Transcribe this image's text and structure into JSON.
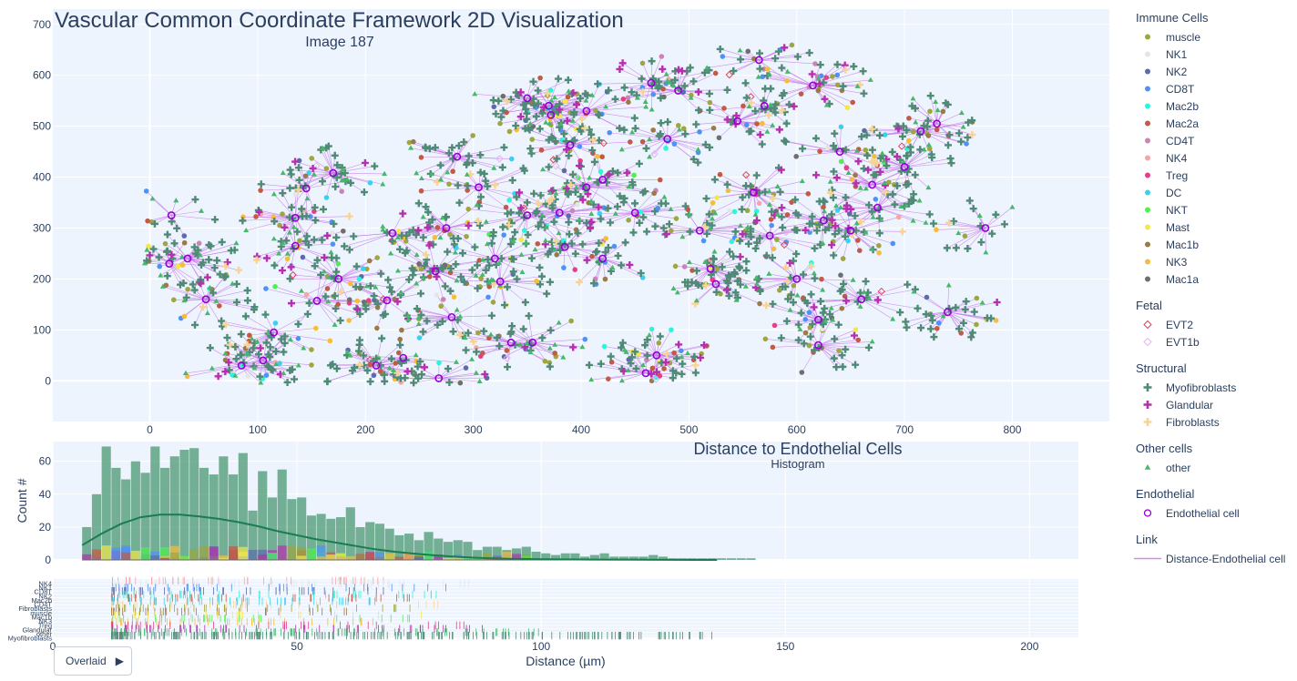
{
  "chart_data": [
    {
      "type": "scatter",
      "title": "Vascular Common Coordinate Framework 2D Visualization",
      "subtitle": "Image 187",
      "xlim": [
        -90,
        890
      ],
      "ylim": [
        -80,
        730
      ],
      "x_ticks": [
        0,
        100,
        200,
        300,
        400,
        500,
        600,
        700,
        800
      ],
      "y_ticks": [
        0,
        100,
        200,
        300,
        400,
        500,
        600,
        700
      ],
      "endothelial_cells": [
        [
          20,
          325
        ],
        [
          35,
          240
        ],
        [
          18,
          230
        ],
        [
          52,
          160
        ],
        [
          85,
          30
        ],
        [
          105,
          40
        ],
        [
          145,
          378
        ],
        [
          135,
          320
        ],
        [
          135,
          265
        ],
        [
          115,
          95
        ],
        [
          155,
          157
        ],
        [
          170,
          408
        ],
        [
          175,
          200
        ],
        [
          210,
          30
        ],
        [
          225,
          290
        ],
        [
          220,
          158
        ],
        [
          235,
          45
        ],
        [
          265,
          215
        ],
        [
          275,
          300
        ],
        [
          280,
          125
        ],
        [
          268,
          5
        ],
        [
          285,
          440
        ],
        [
          305,
          380
        ],
        [
          320,
          240
        ],
        [
          325,
          195
        ],
        [
          335,
          75
        ],
        [
          350,
          325
        ],
        [
          350,
          555
        ],
        [
          355,
          75
        ],
        [
          370,
          540
        ],
        [
          372,
          522
        ],
        [
          380,
          330
        ],
        [
          385,
          263
        ],
        [
          390,
          463
        ],
        [
          405,
          530
        ],
        [
          420,
          395
        ],
        [
          420,
          240
        ],
        [
          405,
          380
        ],
        [
          450,
          330
        ],
        [
          460,
          15
        ],
        [
          465,
          585
        ],
        [
          470,
          50
        ],
        [
          480,
          475
        ],
        [
          490,
          570
        ],
        [
          510,
          295
        ],
        [
          520,
          220
        ],
        [
          525,
          190
        ],
        [
          545,
          510
        ],
        [
          570,
          540
        ],
        [
          565,
          630
        ],
        [
          575,
          285
        ],
        [
          560,
          370
        ],
        [
          600,
          200
        ],
        [
          615,
          580
        ],
        [
          625,
          315
        ],
        [
          620,
          120
        ],
        [
          620,
          70
        ],
        [
          640,
          450
        ],
        [
          650,
          295
        ],
        [
          660,
          160
        ],
        [
          670,
          385
        ],
        [
          675,
          340
        ],
        [
          700,
          420
        ],
        [
          715,
          490
        ],
        [
          730,
          505
        ],
        [
          740,
          135
        ],
        [
          775,
          300
        ]
      ],
      "cell_type_series": [
        {
          "name": "muscle",
          "color": "#9da63f",
          "symbol": "circle",
          "count": 110
        },
        {
          "name": "NK1",
          "color": "#e5e5e5",
          "symbol": "circle",
          "count": 15
        },
        {
          "name": "NK2",
          "color": "#5b6bab",
          "symbol": "circle",
          "count": 30
        },
        {
          "name": "CD8T",
          "color": "#4f92f5",
          "symbol": "circle",
          "count": 55
        },
        {
          "name": "Mac2b",
          "color": "#2cf5dc",
          "symbol": "circle",
          "count": 25
        },
        {
          "name": "Mac2a",
          "color": "#c25a45",
          "symbol": "circle",
          "count": 90
        },
        {
          "name": "CD4T",
          "color": "#c786b5",
          "symbol": "circle",
          "count": 20
        },
        {
          "name": "NK4",
          "color": "#f5a7a7",
          "symbol": "circle",
          "count": 15
        },
        {
          "name": "Treg",
          "color": "#e63f8a",
          "symbol": "circle",
          "count": 15
        },
        {
          "name": "DC",
          "color": "#3cd0f0",
          "symbol": "circle",
          "count": 20
        },
        {
          "name": "NKT",
          "color": "#4ef04e",
          "symbol": "circle",
          "count": 10
        },
        {
          "name": "Mast",
          "color": "#f2e84a",
          "symbol": "circle",
          "count": 20
        },
        {
          "name": "Mac1b",
          "color": "#9a7a4a",
          "symbol": "circle",
          "count": 40
        },
        {
          "name": "NK3",
          "color": "#f5bd3a",
          "symbol": "circle",
          "count": 40
        },
        {
          "name": "Mac1a",
          "color": "#6e6e6e",
          "symbol": "circle",
          "count": 20
        },
        {
          "name": "EVT2",
          "color": "#e2435b",
          "symbol": "diamond-open",
          "count": 12
        },
        {
          "name": "EVT1b",
          "color": "#e3b6f2",
          "symbol": "diamond-open",
          "count": 12
        },
        {
          "name": "Myofibroblasts",
          "color": "#4e8a76",
          "symbol": "cross",
          "count": 900
        },
        {
          "name": "Glandular",
          "color": "#b62fae",
          "symbol": "cross",
          "count": 120
        },
        {
          "name": "Fibroblasts",
          "color": "#f7d39a",
          "symbol": "cross",
          "count": 60
        },
        {
          "name": "other",
          "color": "#45b86b",
          "symbol": "triangle-up",
          "count": 280
        }
      ]
    },
    {
      "type": "bar",
      "title": "Distance to Endothelial Cells",
      "subtitle": "Histogram",
      "ylabel": "Count #",
      "xlabel": "Distance (µm)",
      "xlim": [
        0,
        210
      ],
      "ylim": [
        0,
        72
      ],
      "x_ticks": [
        0,
        50,
        100,
        150,
        200
      ],
      "y_ticks": [
        0,
        20,
        40,
        60
      ],
      "bin_width": 2,
      "bins_start": 6,
      "counts": [
        20,
        40,
        69,
        56,
        49,
        60,
        53,
        69,
        56,
        63,
        67,
        68,
        56,
        52,
        63,
        52,
        65,
        30,
        54,
        38,
        55,
        37,
        38,
        27,
        28,
        25,
        26,
        32,
        20,
        23,
        22,
        19,
        15,
        16,
        12,
        17,
        13,
        11,
        12,
        11,
        6,
        8,
        8,
        6,
        7,
        8,
        5,
        4,
        3,
        4,
        4,
        2,
        3,
        4,
        2,
        2,
        2,
        2,
        3,
        2,
        1,
        1,
        1,
        1,
        1,
        1,
        1,
        1,
        1
      ],
      "kde_curve": [
        [
          6,
          9
        ],
        [
          10,
          16
        ],
        [
          14,
          22
        ],
        [
          18,
          26
        ],
        [
          22,
          27.5
        ],
        [
          26,
          27.5
        ],
        [
          30,
          26.5
        ],
        [
          34,
          25
        ],
        [
          38,
          23
        ],
        [
          42,
          20.5
        ],
        [
          46,
          17.5
        ],
        [
          50,
          15
        ],
        [
          54,
          12.5
        ],
        [
          58,
          10.5
        ],
        [
          62,
          8.5
        ],
        [
          66,
          6.5
        ],
        [
          70,
          5
        ],
        [
          74,
          3.8
        ],
        [
          78,
          2.8
        ],
        [
          82,
          2
        ],
        [
          86,
          1.4
        ],
        [
          90,
          1
        ],
        [
          94,
          0.7
        ],
        [
          100,
          0.4
        ],
        [
          110,
          0.2
        ],
        [
          120,
          0.1
        ],
        [
          136,
          0
        ]
      ],
      "kde_color": "#1a7d4f",
      "bar_color": "#2f8a5e"
    },
    {
      "type": "scatter",
      "subtype": "rug",
      "categories": [
        "NK4",
        "NK1",
        "CD8T",
        "NK2",
        "Mac2b",
        "Mac2a",
        "DC",
        "Fibroblasts",
        "muscle",
        "Mac1b",
        "Mast",
        "NKT",
        "NK3",
        "Treg",
        "Glandular",
        "other",
        "Myofibroblasts"
      ],
      "visible_tick_labels": [
        "NK4",
        "NK1",
        "CD8T",
        "NK2",
        "Mac2b",
        "CD4T",
        "Fibroblasts",
        "muscle",
        "Mac1b",
        "NK3",
        "Treg",
        "Glandular",
        "other",
        "Myofibroblasts"
      ]
    }
  ],
  "legend": {
    "groups": [
      {
        "title": "Immune Cells",
        "items": [
          {
            "label": "muscle",
            "color": "#9da63f",
            "symbol": "circle"
          },
          {
            "label": "NK1",
            "color": "#e5e5e5",
            "symbol": "circle"
          },
          {
            "label": "NK2",
            "color": "#5b6bab",
            "symbol": "circle"
          },
          {
            "label": "CD8T",
            "color": "#4f92f5",
            "symbol": "circle"
          },
          {
            "label": "Mac2b",
            "color": "#2cf5dc",
            "symbol": "circle"
          },
          {
            "label": "Mac2a",
            "color": "#c25a45",
            "symbol": "circle"
          },
          {
            "label": "CD4T",
            "color": "#c786b5",
            "symbol": "circle"
          },
          {
            "label": "NK4",
            "color": "#f5a7a7",
            "symbol": "circle"
          },
          {
            "label": "Treg",
            "color": "#e63f8a",
            "symbol": "circle"
          },
          {
            "label": "DC",
            "color": "#3cd0f0",
            "symbol": "circle"
          },
          {
            "label": "NKT",
            "color": "#4ef04e",
            "symbol": "circle"
          },
          {
            "label": "Mast",
            "color": "#f2e84a",
            "symbol": "circle"
          },
          {
            "label": "Mac1b",
            "color": "#9a7a4a",
            "symbol": "circle"
          },
          {
            "label": "NK3",
            "color": "#f5bd3a",
            "symbol": "circle"
          },
          {
            "label": "Mac1a",
            "color": "#6e6e6e",
            "symbol": "circle"
          }
        ]
      },
      {
        "title": "Fetal",
        "items": [
          {
            "label": "EVT2",
            "color": "#e2435b",
            "symbol": "diamond-open"
          },
          {
            "label": "EVT1b",
            "color": "#e3b6f2",
            "symbol": "diamond-open"
          }
        ]
      },
      {
        "title": "Structural",
        "items": [
          {
            "label": "Myofibroblasts",
            "color": "#4e8a76",
            "symbol": "cross"
          },
          {
            "label": "Glandular",
            "color": "#b62fae",
            "symbol": "cross"
          },
          {
            "label": "Fibroblasts",
            "color": "#f7d39a",
            "symbol": "cross"
          }
        ]
      },
      {
        "title": "Other cells",
        "items": [
          {
            "label": "other",
            "color": "#45b86b",
            "symbol": "triangle-up"
          }
        ]
      },
      {
        "title": "Endothelial",
        "items": [
          {
            "label": "Endothelial cell",
            "color": "#9400d3",
            "symbol": "circle-open"
          }
        ]
      },
      {
        "title": "Link",
        "items": [
          {
            "label": "Distance-Endothelial cell",
            "color": "#d58cf0",
            "symbol": "line"
          }
        ]
      }
    ]
  },
  "controls": {
    "overlaid_button": "Overlaid",
    "play_icon": "play-triangle-icon"
  },
  "colors": {
    "plot_bg": "#eef4fd",
    "grid": "#ffffff",
    "link": "#c77dea",
    "endothelial": "#9400d3"
  }
}
